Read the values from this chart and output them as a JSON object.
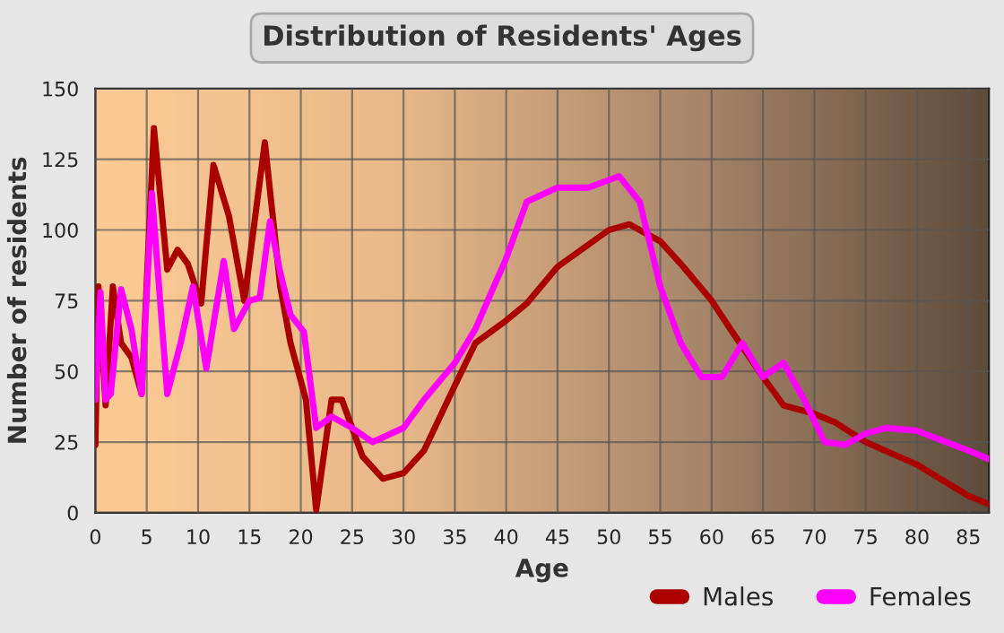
{
  "chart_data": {
    "type": "line",
    "title": "Distribution of Residents' Ages",
    "xlabel": "Age",
    "ylabel": "Number of residents",
    "xlim": [
      0,
      87
    ],
    "xticks": [
      0,
      5,
      10,
      15,
      20,
      25,
      30,
      35,
      40,
      45,
      50,
      55,
      60,
      65,
      70,
      75,
      80,
      85
    ],
    "ylim": [
      0,
      150
    ],
    "yticks": [
      0,
      25,
      50,
      75,
      100,
      125,
      150
    ],
    "grid": true,
    "legend": "bottom right",
    "series": [
      {
        "name": "Males",
        "color": "#aa0000",
        "x": [
          0,
          0.3,
          1,
          1.7,
          2.5,
          3.5,
          4.5,
          5.7,
          7,
          8,
          9,
          10.3,
          11.5,
          13,
          14.5,
          16.5,
          18,
          19,
          20.5,
          21.5,
          23,
          24,
          26,
          28,
          30,
          32,
          35,
          37,
          40,
          42,
          45,
          50,
          52,
          55,
          57,
          60,
          62,
          65,
          67,
          70,
          72,
          75,
          80,
          85,
          87
        ],
        "values": [
          24,
          80,
          38,
          80,
          60,
          55,
          42,
          136,
          86,
          93,
          88,
          74,
          123,
          105,
          75,
          131,
          80,
          60,
          40,
          1,
          40,
          40,
          20,
          12,
          14,
          22,
          45,
          60,
          68,
          74,
          87,
          100,
          102,
          96,
          88,
          75,
          64,
          48,
          38,
          35,
          32,
          25,
          17,
          6,
          3
        ]
      },
      {
        "name": "Females",
        "color": "#ff00ff",
        "x": [
          0,
          0.5,
          1,
          1.5,
          2.5,
          3.5,
          4.5,
          5.5,
          7,
          8.3,
          9.5,
          10.8,
          12.5,
          13.5,
          15,
          16,
          17,
          18,
          19,
          20.3,
          21.5,
          23,
          25,
          27,
          30,
          32,
          35,
          37,
          40,
          42,
          45,
          48,
          51,
          53,
          55,
          57,
          59,
          61,
          63,
          65,
          67,
          69,
          71,
          73,
          75,
          77,
          80,
          85,
          87
        ],
        "values": [
          40,
          78,
          40,
          42,
          79,
          65,
          42,
          113,
          42,
          60,
          80,
          51,
          89,
          65,
          75,
          76,
          103,
          85,
          70,
          64,
          30,
          34,
          30,
          25,
          30,
          40,
          53,
          65,
          90,
          110,
          115,
          115,
          119,
          110,
          80,
          60,
          48,
          48,
          60,
          48,
          53,
          40,
          25,
          24,
          28,
          30,
          29,
          22,
          19
        ]
      }
    ]
  }
}
